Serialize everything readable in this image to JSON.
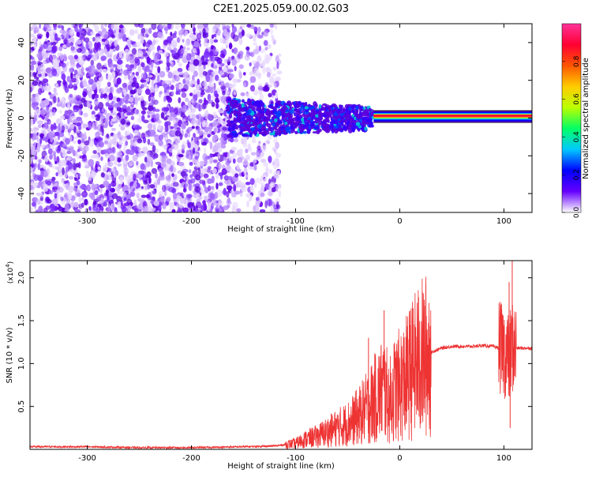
{
  "title": "C2E1.2025.059.00.02.G03",
  "chart_data": [
    {
      "type": "heatmap",
      "xlabel": "Height of straight line (km)",
      "ylabel": "Frequency (Hz)",
      "xlim": [
        -355,
        127
      ],
      "ylim": [
        -50,
        50
      ],
      "xticks": [
        -300,
        -200,
        -100,
        0,
        100
      ],
      "yticks": [
        -40,
        -20,
        0,
        20,
        40
      ],
      "colorbar": {
        "label": "Normalized spectral amplitude",
        "range": [
          0,
          1
        ],
        "ticks": [
          "0.0",
          "0.2",
          "0.4",
          "0.6",
          "0.8"
        ],
        "colors": [
          "#ffffff",
          "#6600ff",
          "#0000ff",
          "#00c8ff",
          "#00ff66",
          "#bbff00",
          "#ffcc00",
          "#ff5500",
          "#ff0033",
          "#ff3399"
        ]
      },
      "regions": [
        {
          "x": [
            -355,
            -160
          ],
          "freq": [
            -50,
            50
          ],
          "amplitude": 0.12,
          "pattern": "noise"
        },
        {
          "x": [
            -160,
            -115
          ],
          "freq": [
            -50,
            50
          ],
          "amplitude": 0.05,
          "pattern": "sparse noise"
        },
        {
          "x": [
            -165,
            -25
          ],
          "freq": [
            -12,
            12
          ],
          "amplitude": 0.35,
          "pattern": "carrier emerging"
        },
        {
          "x": [
            -25,
            127
          ],
          "freq": [
            -1,
            3
          ],
          "amplitude": 0.95,
          "pattern": "stable carrier near 1.5 Hz"
        }
      ]
    },
    {
      "type": "line",
      "xlabel": "Height of straight line (km)",
      "ylabel": "SNR (10 * v/v)",
      "yscale_label": "(x10",
      "yscale_exp": "4",
      "xlim": [
        -355,
        127
      ],
      "ylim": [
        0,
        2.2
      ],
      "xticks": [
        -300,
        -200,
        -100,
        0,
        100
      ],
      "yticks": [
        "0.5",
        "1.0",
        "1.5",
        "2.0"
      ],
      "color": "#ee3333",
      "x": [
        -355,
        -300,
        -250,
        -200,
        -150,
        -120,
        -100,
        -90,
        -80,
        -70,
        -60,
        -50,
        -40,
        -30,
        -20,
        -15,
        -10,
        -5,
        0,
        5,
        10,
        20,
        30,
        40,
        50,
        60,
        70,
        80,
        90,
        95,
        100,
        105,
        108,
        110,
        115,
        120,
        127
      ],
      "y": [
        0.03,
        0.03,
        0.02,
        0.02,
        0.03,
        0.04,
        0.07,
        0.12,
        0.15,
        0.2,
        0.25,
        0.3,
        0.38,
        0.5,
        0.65,
        0.72,
        0.55,
        0.7,
        0.75,
        0.8,
        0.9,
        1.05,
        1.13,
        1.18,
        1.2,
        1.2,
        1.2,
        1.21,
        1.2,
        1.18,
        1.15,
        1.05,
        1.2,
        1.18,
        1.18,
        1.18,
        1.18
      ],
      "spikes": [
        {
          "x": -15,
          "y": 1.62
        },
        {
          "x": -30,
          "y": 1.3
        },
        {
          "x": 10,
          "y": 1.45
        },
        {
          "x": 105,
          "y": 1.95
        },
        {
          "x": 108,
          "y": 2.2
        },
        {
          "x": 106,
          "y": 0.25
        }
      ]
    }
  ]
}
